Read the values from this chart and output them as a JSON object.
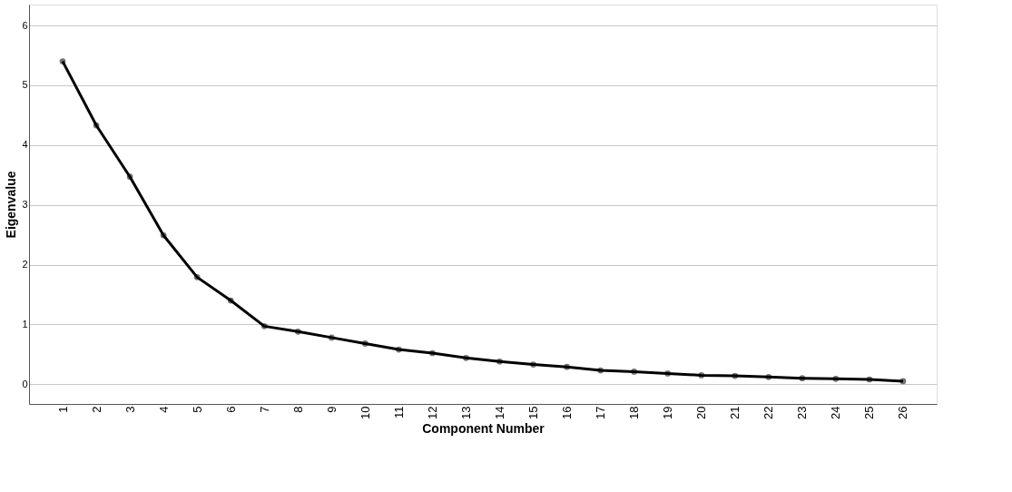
{
  "chart_data": {
    "type": "line",
    "xlabel": "Component Number",
    "ylabel": "Eigenvalue",
    "categories": [
      "1",
      "2",
      "3",
      "4",
      "5",
      "6",
      "7",
      "8",
      "9",
      "10",
      "11",
      "12",
      "13",
      "14",
      "15",
      "16",
      "17",
      "18",
      "19",
      "20",
      "21",
      "22",
      "23",
      "24",
      "25",
      "26"
    ],
    "series": [
      {
        "color": "#000000",
        "values": [
          5.4,
          4.33,
          3.47,
          2.49,
          1.79,
          1.4,
          0.97,
          0.88,
          0.78,
          0.68,
          0.58,
          0.52,
          0.44,
          0.38,
          0.33,
          0.29,
          0.23,
          0.21,
          0.18,
          0.15,
          0.14,
          0.12,
          0.1,
          0.09,
          0.08,
          0.05
        ]
      }
    ],
    "ylim": [
      -0.33,
      6.35
    ],
    "yticks": [
      0,
      1,
      2,
      3,
      4,
      5,
      6
    ],
    "grid": "y",
    "marker": "circle",
    "line_style": "solid"
  }
}
